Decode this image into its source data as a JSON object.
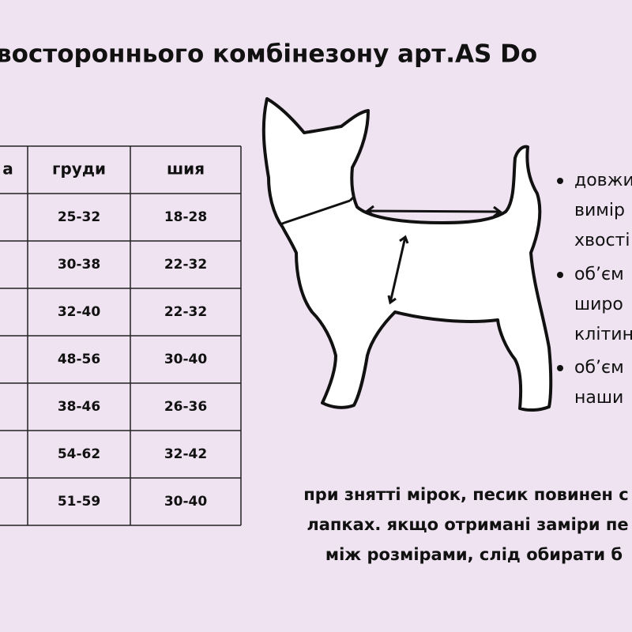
{
  "header": {
    "title": "востороннього комбінезону арт.AS Do"
  },
  "table": {
    "header": [
      "а",
      "груди",
      "шия"
    ],
    "rows": [
      [
        "25-32",
        "18-28"
      ],
      [
        "30-38",
        "22-32"
      ],
      [
        "32-40",
        "22-32"
      ],
      [
        "48-56",
        "30-40"
      ],
      [
        "38-46",
        "26-36"
      ],
      [
        "54-62",
        "32-42"
      ],
      [
        "51-59",
        "30-40"
      ]
    ]
  },
  "bullets": [
    [
      "довжи",
      "вимір",
      "хвості"
    ],
    [
      "об’єм",
      "широ",
      "клітин"
    ],
    [
      "об’єм",
      "наши"
    ]
  ],
  "note": [
    "при знятті мірок, песик повинен с",
    "лапках. якщо отримані заміри пе",
    "між розмірами, слід обирати б"
  ]
}
